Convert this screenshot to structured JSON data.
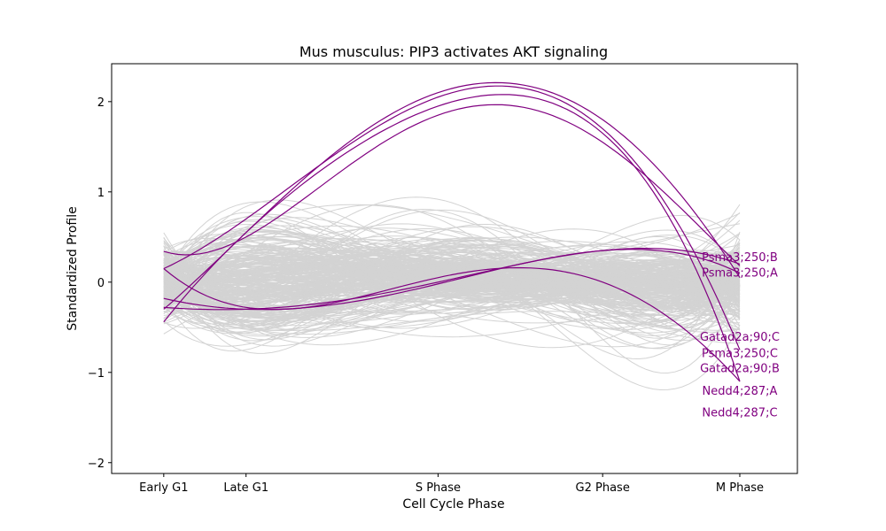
{
  "chart_data": {
    "type": "line",
    "title": "Mus musculus: PIP3 activates AKT signaling",
    "xlabel": "Cell Cycle Phase",
    "ylabel": "Standardized Profile",
    "categories": [
      "Early G1",
      "Late G1",
      "S Phase",
      "G2 Phase",
      "M Phase"
    ],
    "x_positions": [
      0,
      0.6,
      2,
      3.2,
      4.2
    ],
    "xlim": [
      -0.38,
      4.62
    ],
    "ylim": [
      -2.12,
      2.42
    ],
    "yticks": [
      -2,
      -1,
      0,
      1,
      2
    ],
    "ytick_labels": [
      "−2",
      "−1",
      "0",
      "1",
      "2"
    ],
    "grid": false,
    "background_series": {
      "color": "#d3d3d3",
      "count": 300,
      "note_values": "many gray gene profiles spanning roughly -1.9 to 2.2"
    },
    "highlight_color": "#800080",
    "series": [
      {
        "name": "Psma3;250;B",
        "values": [
          0.34,
          0.5,
          1.85,
          1.55,
          0.18
        ]
      },
      {
        "name": "Psma3;250;A",
        "values": [
          -0.3,
          0.55,
          2.1,
          1.8,
          0.05
        ]
      },
      {
        "name": "Gatad2a;90;C",
        "values": [
          -0.28,
          -0.3,
          0.0,
          0.35,
          0.2
        ]
      },
      {
        "name": "Psma3;250;C",
        "values": [
          0.15,
          0.7,
          2.05,
          1.7,
          -0.75
        ]
      },
      {
        "name": "Gatad2a;90;B",
        "values": [
          -0.18,
          -0.3,
          -0.02,
          0.35,
          0.1
        ]
      },
      {
        "name": "Nedd4;287;A",
        "values": [
          0.15,
          -0.28,
          0.05,
          0.0,
          -1.1
        ]
      },
      {
        "name": "Nedd4;287;C",
        "values": [
          -0.44,
          0.55,
          1.95,
          1.65,
          -1.1
        ]
      }
    ],
    "label_y_positions": [
      0.28,
      0.11,
      -0.6,
      -0.78,
      -0.95,
      -1.2,
      -1.44
    ]
  }
}
